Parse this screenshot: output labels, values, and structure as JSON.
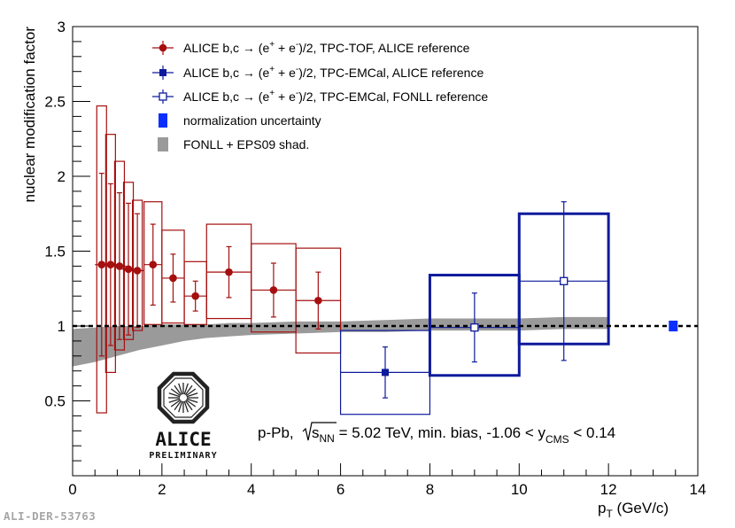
{
  "footer_id": "ALI-DER-53763",
  "logo": {
    "word": "ALICE",
    "sub": "PRELIMINARY"
  },
  "chart_data": {
    "type": "scatter",
    "xlabel_main": "p",
    "xlabel_sub": "T",
    "xlabel_unit": " (GeV/c)",
    "ylabel": "nuclear modification factor",
    "xlim": [
      0,
      14
    ],
    "ylim": [
      0,
      3
    ],
    "x_ticks": [
      0,
      2,
      4,
      6,
      8,
      10,
      12,
      14
    ],
    "y_ticks": [
      0.5,
      1,
      1.5,
      2,
      2.5,
      3
    ],
    "reference_line": 1,
    "annotation": {
      "pre": "p-Pb, ",
      "sqrt_s": "s",
      "sqrt_sub": "NN",
      "mid": " = 5.02 TeV, min. bias, -1.06 < y",
      "y_sub": "CMS",
      "post": " < 0.14"
    },
    "legend": [
      {
        "label_pre": "ALICE b,c → (e",
        "label_mid": " + e",
        "label_post": ")/2, TPC-TOF, ALICE reference",
        "marker": "circle",
        "color": "#a50f0f"
      },
      {
        "label_pre": "ALICE b,c → (e",
        "label_mid": " + e",
        "label_post": ")/2, TPC-EMCal, ALICE reference",
        "marker": "square",
        "color": "#0d1a9c"
      },
      {
        "label_pre": "ALICE b,c → (e",
        "label_mid": " + e",
        "label_post": ")/2, TPC-EMCal, FONLL reference",
        "marker": "open-square",
        "color": "#0d1a9c"
      },
      {
        "label": "normalization uncertainty",
        "marker": "box",
        "color": "#0a2fff"
      },
      {
        "label": "FONLL + EPS09 shad.",
        "marker": "band",
        "color": "#9a9a9a"
      }
    ],
    "series": [
      {
        "name": "TPC-TOF, ALICE reference",
        "color": "#a50f0f",
        "marker": "circle",
        "points": [
          {
            "x": 0.65,
            "xerr": 0.15,
            "y": 1.41,
            "stat": [
              0.61,
              0.61
            ],
            "sys": [
              0.99,
              1.06
            ]
          },
          {
            "x": 0.85,
            "xerr": 0.15,
            "y": 1.41,
            "stat": [
              0.54,
              0.54
            ],
            "sys": [
              0.72,
              0.87
            ]
          },
          {
            "x": 1.05,
            "xerr": 0.15,
            "y": 1.4,
            "stat": [
              0.49,
              0.49
            ],
            "sys": [
              0.56,
              0.7
            ]
          },
          {
            "x": 1.25,
            "xerr": 0.15,
            "y": 1.38,
            "stat": [
              0.44,
              0.44
            ],
            "sys": [
              0.47,
              0.58
            ]
          },
          {
            "x": 1.45,
            "xerr": 0.15,
            "y": 1.37,
            "stat": [
              0.38,
              0.38
            ],
            "sys": [
              0.4,
              0.47
            ]
          },
          {
            "x": 1.8,
            "xerr": 0.2,
            "y": 1.41,
            "stat": [
              0.27,
              0.27
            ],
            "sys": [
              0.4,
              0.42
            ]
          },
          {
            "x": 2.25,
            "xerr": 0.25,
            "y": 1.32,
            "stat": [
              0.16,
              0.16
            ],
            "sys": [
              0.3,
              0.32
            ]
          },
          {
            "x": 2.75,
            "xerr": 0.25,
            "y": 1.2,
            "stat": [
              0.1,
              0.1
            ],
            "sys": [
              0.19,
              0.23
            ]
          },
          {
            "x": 3.5,
            "xerr": 0.5,
            "y": 1.36,
            "stat": [
              0.17,
              0.17
            ],
            "sys": [
              0.31,
              0.32
            ]
          },
          {
            "x": 4.5,
            "xerr": 0.5,
            "y": 1.24,
            "stat": [
              0.18,
              0.18
            ],
            "sys": [
              0.28,
              0.31
            ]
          },
          {
            "x": 5.5,
            "xerr": 0.5,
            "y": 1.17,
            "stat": [
              0.19,
              0.19
            ],
            "sys": [
              0.35,
              0.35
            ]
          }
        ]
      },
      {
        "name": "TPC-EMCal, ALICE reference",
        "color": "#0d1a9c",
        "marker": "square",
        "points": [
          {
            "x": 7,
            "xerr": 1,
            "y": 0.69,
            "stat": [
              0.17,
              0.17
            ],
            "sys": [
              0.28,
              0.28
            ]
          }
        ]
      },
      {
        "name": "TPC-EMCal, FONLL reference",
        "color": "#0d1a9c",
        "marker": "open-square",
        "points": [
          {
            "x": 9,
            "xerr": 1,
            "y": 0.99,
            "stat": [
              0.23,
              0.23
            ],
            "sys": [
              0.32,
              0.35
            ]
          },
          {
            "x": 11,
            "xerr": 1,
            "y": 1.3,
            "stat": [
              0.53,
              0.53
            ],
            "sys": [
              0.42,
              0.45
            ]
          }
        ]
      }
    ],
    "normalization_uncertainty": {
      "x": 13.45,
      "y": 1.0,
      "half_height": 0.03
    },
    "model_band": {
      "name": "FONLL + EPS09 shad.",
      "color": "#9a9a9a",
      "x": [
        0.0,
        0.5,
        1.0,
        1.5,
        2.0,
        2.5,
        3.0,
        3.5,
        4.0,
        5.0,
        6.0,
        7.0,
        8.0,
        9.0,
        10.0,
        11.0,
        12.0
      ],
      "lower": [
        0.73,
        0.76,
        0.8,
        0.84,
        0.87,
        0.9,
        0.92,
        0.93,
        0.94,
        0.95,
        0.96,
        0.96,
        0.97,
        0.97,
        0.97,
        0.98,
        0.98
      ],
      "upper": [
        0.98,
        0.99,
        1.0,
        1.0,
        1.01,
        1.01,
        1.01,
        1.02,
        1.02,
        1.03,
        1.03,
        1.04,
        1.05,
        1.05,
        1.05,
        1.06,
        1.06
      ]
    }
  }
}
